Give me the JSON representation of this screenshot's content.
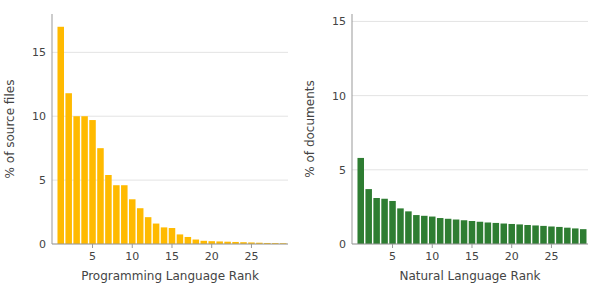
{
  "chart_data": [
    {
      "type": "bar",
      "x": [
        1,
        2,
        3,
        4,
        5,
        6,
        7,
        8,
        9,
        10,
        11,
        12,
        13,
        14,
        15,
        16,
        17,
        18,
        19,
        20,
        21,
        22,
        23,
        24,
        25,
        26,
        27,
        28,
        29
      ],
      "values": [
        17.0,
        11.8,
        10.0,
        10.0,
        9.7,
        7.5,
        5.4,
        4.6,
        4.6,
        3.5,
        2.8,
        2.1,
        1.6,
        1.3,
        1.25,
        0.75,
        0.55,
        0.35,
        0.25,
        0.22,
        0.2,
        0.18,
        0.16,
        0.14,
        0.12,
        0.1,
        0.08,
        0.07,
        0.06
      ],
      "color": "#FFBA00",
      "xlabel": "Programming Language Rank",
      "ylabel": "% of source files",
      "xlim": [
        -0.1,
        29.6
      ],
      "xticks": [
        5,
        10,
        15,
        20,
        25
      ],
      "ylim": [
        0,
        18.0
      ],
      "yticks": [
        0,
        5,
        10,
        15
      ],
      "grid": true
    },
    {
      "type": "bar",
      "x": [
        1,
        2,
        3,
        4,
        5,
        6,
        7,
        8,
        9,
        10,
        11,
        12,
        13,
        14,
        15,
        16,
        17,
        18,
        19,
        20,
        21,
        22,
        23,
        24,
        25,
        26,
        27,
        28,
        29
      ],
      "values": [
        5.8,
        3.7,
        3.1,
        3.05,
        2.9,
        2.4,
        2.2,
        1.95,
        1.9,
        1.85,
        1.75,
        1.7,
        1.65,
        1.6,
        1.55,
        1.5,
        1.45,
        1.42,
        1.38,
        1.35,
        1.32,
        1.28,
        1.25,
        1.22,
        1.18,
        1.15,
        1.1,
        1.05,
        1.0
      ],
      "color": "#2E7D32",
      "xlabel": "Natural Language Rank",
      "ylabel": "% of documents",
      "xlim": [
        -0.1,
        29.6
      ],
      "xticks": [
        5,
        10,
        15,
        20,
        25
      ],
      "ylim": [
        0,
        15.5
      ],
      "yticks": [
        0,
        5,
        10,
        15
      ],
      "grid": true
    }
  ]
}
